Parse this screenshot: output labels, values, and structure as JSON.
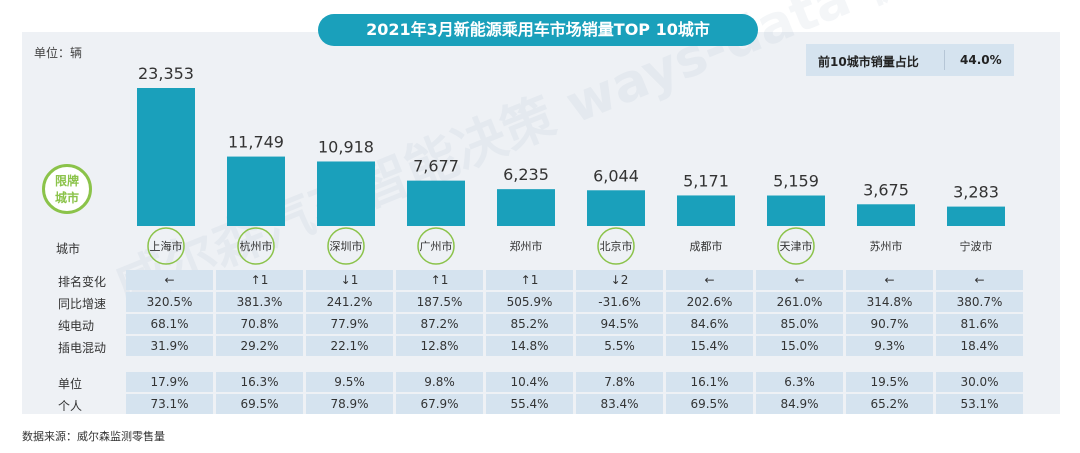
{
  "title": "2021年3月新能源乘用车市场销量TOP 10城市",
  "unit": "单位：辆",
  "share_box": {
    "label": "前10城市销量占比",
    "value": "44.0%"
  },
  "badge": {
    "line1": "限牌",
    "line2": "城市"
  },
  "watermark": "威尔森汽车智能决策 ways-data 微信公众号",
  "source": "数据来源：威尔森监测零售量",
  "colors": {
    "bar": "#1aa0bb",
    "title_bg": "#1aa0bb",
    "badge": "#8bc34a",
    "cell": "#d5e3ef"
  },
  "chart_data": {
    "type": "bar",
    "categories": [
      "上海市",
      "杭州市",
      "深圳市",
      "广州市",
      "郑州市",
      "北京市",
      "成都市",
      "天津市",
      "苏州市",
      "宁波市"
    ],
    "values": [
      23353,
      11749,
      10918,
      7677,
      6235,
      6044,
      5171,
      5159,
      3675,
      3283
    ],
    "value_labels": [
      "23,353",
      "11,749",
      "10,918",
      "7,677",
      "6,235",
      "6,044",
      "5,171",
      "5,159",
      "3,675",
      "3,283"
    ],
    "ylim": [
      0,
      23353
    ],
    "xlabel": "城市",
    "restricted_plate_cities": [
      "上海市",
      "杭州市",
      "深圳市",
      "广州市",
      "北京市",
      "天津市"
    ]
  },
  "table": {
    "city_header": "城市",
    "rows": [
      {
        "label": "排名变化",
        "values": [
          "←",
          "↑1",
          "↓1",
          "↑1",
          "↑1",
          "↓2",
          "←",
          "←",
          "←",
          "←"
        ]
      },
      {
        "label": "同比增速",
        "values": [
          "320.5%",
          "381.3%",
          "241.2%",
          "187.5%",
          "505.9%",
          "-31.6%",
          "202.6%",
          "261.0%",
          "314.8%",
          "380.7%"
        ]
      },
      {
        "label": "纯电动",
        "values": [
          "68.1%",
          "70.8%",
          "77.9%",
          "87.2%",
          "85.2%",
          "94.5%",
          "84.6%",
          "85.0%",
          "90.7%",
          "81.6%"
        ]
      },
      {
        "label": "插电混动",
        "values": [
          "31.9%",
          "29.2%",
          "22.1%",
          "12.8%",
          "14.8%",
          "5.5%",
          "15.4%",
          "15.0%",
          "9.3%",
          "18.4%"
        ]
      },
      {
        "label": "单位",
        "values": [
          "17.9%",
          "16.3%",
          "9.5%",
          "9.8%",
          "10.4%",
          "7.8%",
          "16.1%",
          "6.3%",
          "19.5%",
          "30.0%"
        ]
      },
      {
        "label": "个人",
        "values": [
          "73.1%",
          "69.5%",
          "78.9%",
          "67.9%",
          "55.4%",
          "83.4%",
          "69.5%",
          "84.9%",
          "65.2%",
          "53.1%"
        ]
      }
    ]
  }
}
